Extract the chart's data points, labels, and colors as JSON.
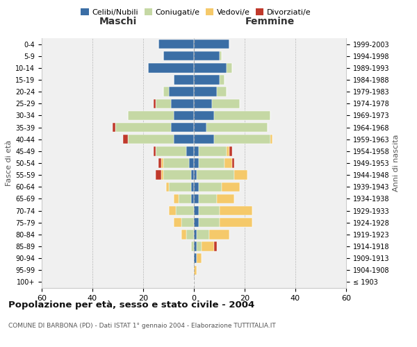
{
  "age_groups": [
    "100+",
    "95-99",
    "90-94",
    "85-89",
    "80-84",
    "75-79",
    "70-74",
    "65-69",
    "60-64",
    "55-59",
    "50-54",
    "45-49",
    "40-44",
    "35-39",
    "30-34",
    "25-29",
    "20-24",
    "15-19",
    "10-14",
    "5-9",
    "0-4"
  ],
  "birth_years": [
    "≤ 1903",
    "1904-1908",
    "1909-1913",
    "1914-1918",
    "1919-1923",
    "1924-1928",
    "1929-1933",
    "1934-1938",
    "1939-1943",
    "1944-1948",
    "1949-1953",
    "1954-1958",
    "1959-1963",
    "1964-1968",
    "1969-1973",
    "1974-1978",
    "1979-1983",
    "1984-1988",
    "1989-1993",
    "1994-1998",
    "1999-2003"
  ],
  "maschi": {
    "celibi": [
      0,
      0,
      0,
      0,
      0,
      0,
      0,
      1,
      1,
      1,
      2,
      3,
      8,
      9,
      8,
      9,
      10,
      8,
      18,
      12,
      14
    ],
    "coniugati": [
      0,
      0,
      0,
      1,
      3,
      5,
      7,
      5,
      9,
      11,
      10,
      12,
      18,
      22,
      18,
      6,
      2,
      0,
      0,
      0,
      0
    ],
    "vedovi": [
      0,
      0,
      0,
      0,
      2,
      3,
      3,
      2,
      1,
      1,
      1,
      0,
      0,
      0,
      0,
      0,
      0,
      0,
      0,
      0,
      0
    ],
    "divorziati": [
      0,
      0,
      0,
      0,
      0,
      0,
      0,
      0,
      0,
      2,
      1,
      1,
      2,
      1,
      0,
      1,
      0,
      0,
      0,
      0,
      0
    ]
  },
  "femmine": {
    "nubili": [
      0,
      0,
      1,
      1,
      1,
      2,
      2,
      2,
      2,
      1,
      2,
      2,
      8,
      5,
      8,
      7,
      9,
      10,
      13,
      10,
      14
    ],
    "coniugate": [
      0,
      0,
      0,
      2,
      5,
      8,
      8,
      7,
      9,
      15,
      10,
      11,
      22,
      24,
      22,
      11,
      4,
      2,
      2,
      1,
      0
    ],
    "vedove": [
      0,
      1,
      2,
      5,
      8,
      13,
      13,
      7,
      7,
      5,
      3,
      1,
      1,
      0,
      0,
      0,
      0,
      0,
      0,
      0,
      0
    ],
    "divorziate": [
      0,
      0,
      0,
      1,
      0,
      0,
      0,
      0,
      0,
      0,
      1,
      1,
      0,
      0,
      0,
      0,
      0,
      0,
      0,
      0,
      0
    ]
  },
  "colors": {
    "celibi": "#3b6ea5",
    "coniugati": "#c5d8a4",
    "vedovi": "#f5c96a",
    "divorziati": "#c0392b"
  },
  "title": "Popolazione per età, sesso e stato civile - 2004",
  "subtitle": "COMUNE DI BARBONA (PD) - Dati ISTAT 1° gennaio 2004 - Elaborazione TUTTITALIA.IT",
  "xlabel_left": "Maschi",
  "xlabel_right": "Femmine",
  "ylabel_left": "Fasce di età",
  "ylabel_right": "Anni di nascita",
  "xlim": 60,
  "background_color": "#f0f0f0"
}
